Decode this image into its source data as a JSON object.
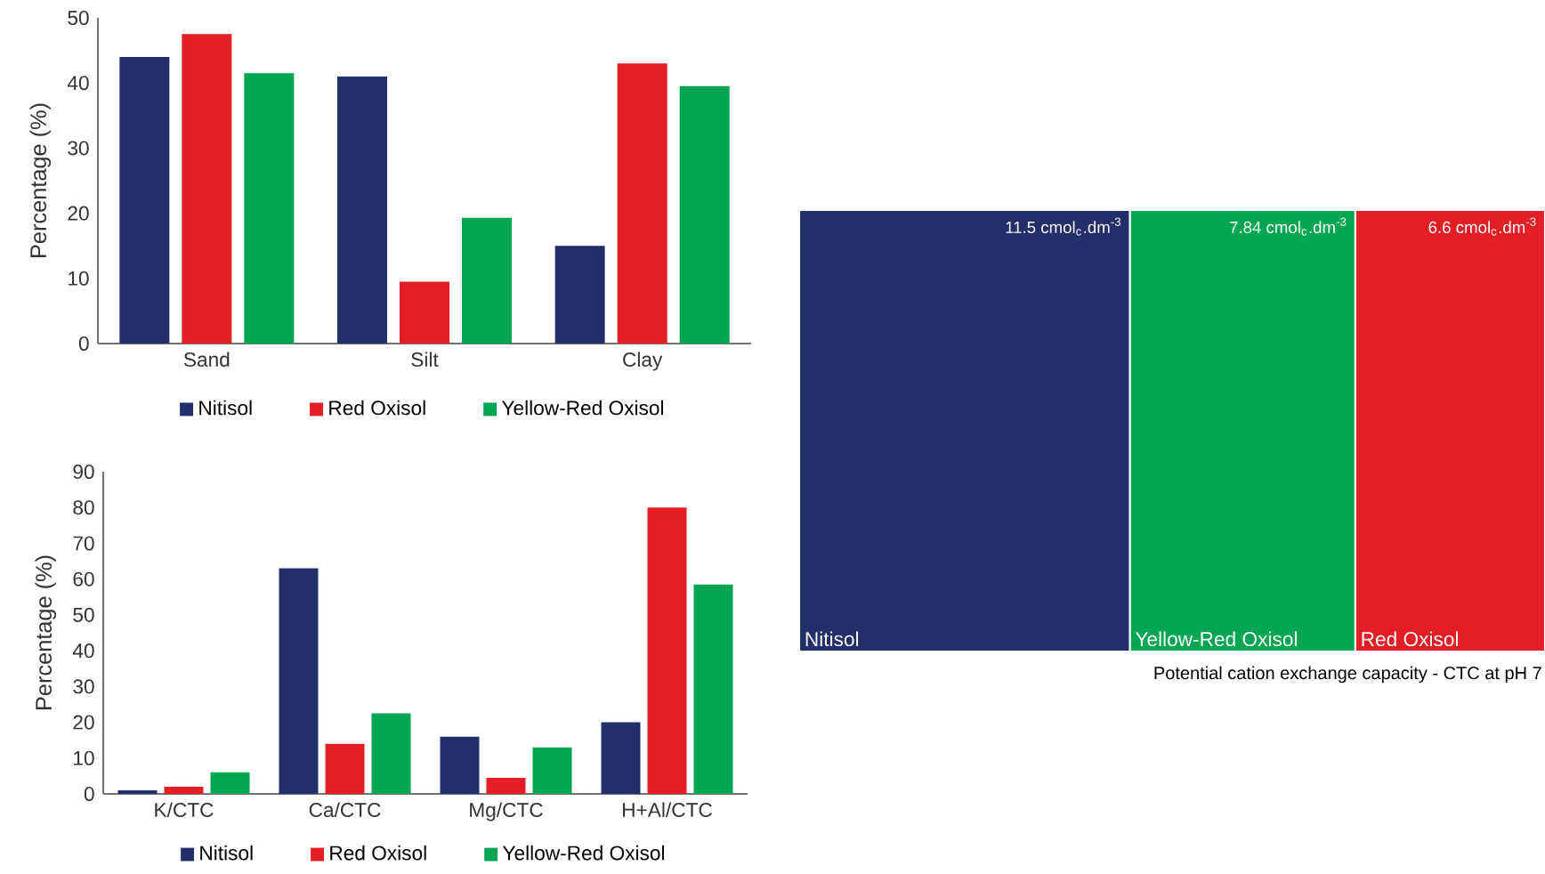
{
  "chart_data": [
    {
      "type": "bar",
      "categories": [
        "Sand",
        "Silt",
        "Clay"
      ],
      "ylabel": "Percentage (%)",
      "ylim": [
        0,
        50
      ],
      "yticks": [
        0,
        10,
        20,
        30,
        40,
        50
      ],
      "legend": "bottom",
      "series": [
        {
          "name": "Nitisol",
          "color": "#222f6b",
          "values": [
            44,
            41,
            15
          ]
        },
        {
          "name": "Red Oxisol",
          "color": "#e31e24",
          "values": [
            47.5,
            9.5,
            43
          ]
        },
        {
          "name": "Yellow-Red Oxisol",
          "color": "#00a651",
          "values": [
            41.5,
            19.3,
            39.5
          ]
        }
      ]
    },
    {
      "type": "bar",
      "categories": [
        "K/CTC",
        "Ca/CTC",
        "Mg/CTC",
        "H+Al/CTC"
      ],
      "ylabel": "Percentage (%)",
      "ylim": [
        0,
        90
      ],
      "yticks": [
        0,
        10,
        20,
        30,
        40,
        50,
        60,
        70,
        80,
        90
      ],
      "legend": "bottom",
      "series": [
        {
          "name": "Nitisol",
          "color": "#222f6b",
          "values": [
            1,
            63,
            16,
            20
          ]
        },
        {
          "name": "Red Oxisol",
          "color": "#e31e24",
          "values": [
            2,
            14,
            4.5,
            80
          ]
        },
        {
          "name": "Yellow-Red Oxisol",
          "color": "#00a651",
          "values": [
            6,
            22.5,
            13,
            58.5
          ]
        }
      ]
    },
    {
      "type": "bar",
      "orientation": "horizontal",
      "stacked": true,
      "categories": [
        null
      ],
      "xlabel": "Potential cation exchange capacity - CTC at pH 7",
      "series": [
        {
          "name": "Nitisol",
          "color": "#222f6b",
          "values": [
            11.5
          ],
          "value_labels": [
            "11.5 cmol$_{c}$.dm$^{-3}$"
          ]
        },
        {
          "name": "Yellow-Red Oxisol",
          "color": "#00a651",
          "values": [
            7.84
          ],
          "value_labels": [
            "7.84 cmol$_{c}$.dm$^{-3}$"
          ]
        },
        {
          "name": "Red Oxisol",
          "color": "#e31e24",
          "values": [
            6.6
          ],
          "value_labels": [
            "6.6 cmol$_{c}$.dm$^{-3}$"
          ]
        }
      ]
    }
  ]
}
